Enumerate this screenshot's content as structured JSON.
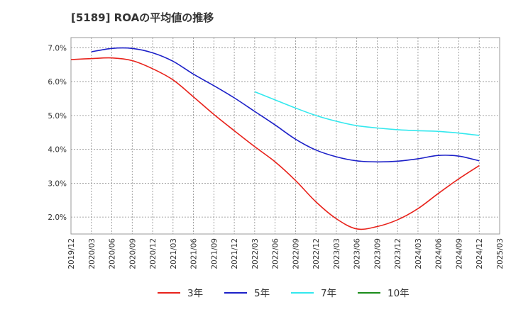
{
  "chart_data": {
    "type": "line",
    "title": "[5189]  ROAの平均値の推移",
    "x": [
      "2019/12",
      "2020/03",
      "2020/06",
      "2020/09",
      "2020/12",
      "2021/03",
      "2021/06",
      "2021/09",
      "2021/12",
      "2022/03",
      "2022/06",
      "2022/09",
      "2022/12",
      "2023/03",
      "2023/06",
      "2023/09",
      "2023/12",
      "2024/03",
      "2024/06",
      "2024/09",
      "2024/12",
      "2025/03"
    ],
    "yticks": [
      "2.0%",
      "3.0%",
      "4.0%",
      "5.0%",
      "6.0%",
      "7.0%"
    ],
    "ylim": [
      1.5,
      7.3
    ],
    "grid": true,
    "legend_position": "bottom",
    "series": [
      {
        "name": "3年",
        "color": "#e8221b",
        "values": [
          6.65,
          6.68,
          6.7,
          6.62,
          6.38,
          6.05,
          5.55,
          5.03,
          4.55,
          4.08,
          3.63,
          3.08,
          2.45,
          1.95,
          1.65,
          1.72,
          1.92,
          2.25,
          2.7,
          3.13,
          3.52,
          null
        ]
      },
      {
        "name": "5年",
        "color": "#1c20c8",
        "values": [
          null,
          6.88,
          6.98,
          6.98,
          6.85,
          6.6,
          6.22,
          5.88,
          5.52,
          5.12,
          4.72,
          4.3,
          3.98,
          3.78,
          3.66,
          3.63,
          3.65,
          3.72,
          3.82,
          3.8,
          3.66,
          null
        ]
      },
      {
        "name": "7年",
        "color": "#33e8ee",
        "values": [
          null,
          null,
          null,
          null,
          null,
          null,
          null,
          null,
          null,
          5.7,
          5.46,
          5.22,
          5.0,
          4.83,
          4.7,
          4.63,
          4.58,
          4.55,
          4.53,
          4.48,
          4.41,
          null
        ]
      },
      {
        "name": "10年",
        "color": "#1a8c1a",
        "values": [
          null,
          null,
          null,
          null,
          null,
          null,
          null,
          null,
          null,
          null,
          null,
          null,
          null,
          null,
          null,
          null,
          null,
          null,
          null,
          null,
          null,
          null
        ]
      }
    ]
  }
}
